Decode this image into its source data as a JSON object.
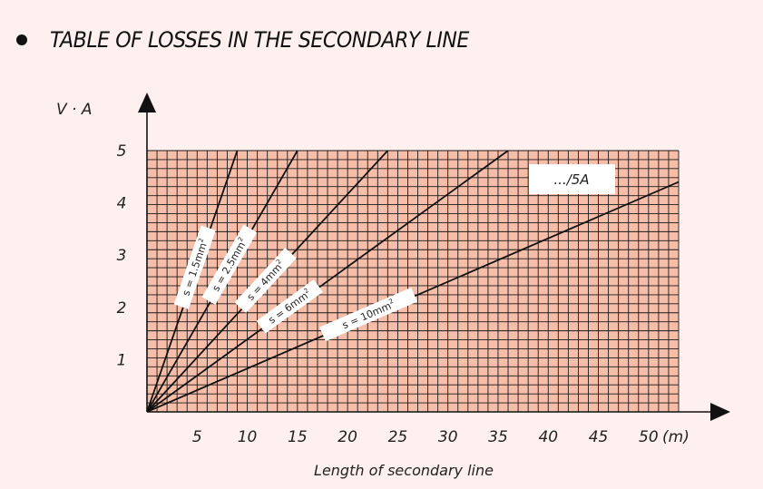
{
  "heading": {
    "title": "TABLE OF LOSSES IN THE SECONDARY LINE"
  },
  "chart_data": {
    "type": "line",
    "title": "TABLE OF LOSSES IN THE SECONDARY LINE",
    "xlabel": "Length of secondary line",
    "xunit": "(m)",
    "ylabel": "V · A",
    "xlim": [
      0,
      53
    ],
    "ylim": [
      0,
      5
    ],
    "xticks": [
      5,
      10,
      15,
      20,
      25,
      30,
      35,
      40,
      45,
      50
    ],
    "yticks": [
      1,
      2,
      3,
      4,
      5
    ],
    "grid": true,
    "annotation": ".../5A",
    "series": [
      {
        "name": "s = 1.5mm²",
        "label_main": "s = 1.5mm",
        "x": [
          0,
          9
        ],
        "y": [
          0,
          5
        ]
      },
      {
        "name": "s = 2.5mm²",
        "label_main": "s = 2.5mm",
        "x": [
          0,
          15
        ],
        "y": [
          0,
          5
        ]
      },
      {
        "name": "s = 4mm²",
        "label_main": "s = 4mm",
        "x": [
          0,
          24
        ],
        "y": [
          0,
          5
        ]
      },
      {
        "name": "s = 6mm²",
        "label_main": "s = 6mm",
        "x": [
          0,
          36
        ],
        "y": [
          0,
          5
        ]
      },
      {
        "name": "s = 10mm²",
        "label_main": "s = 10mm",
        "x": [
          0,
          53
        ],
        "y": [
          0,
          4.4
        ]
      }
    ],
    "label_sup": "2"
  },
  "colors": {
    "plot_fill": "#f6bda9",
    "grid": "#1a1a1a",
    "background": "#fdf0ee"
  }
}
